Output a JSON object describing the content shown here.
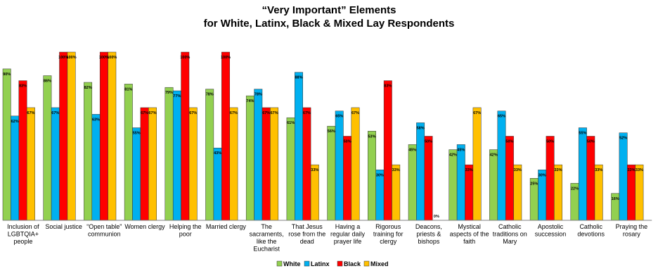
{
  "chart_data": {
    "type": "bar",
    "title": "“Very Important” Elements",
    "subtitle": "for White, Latinx, Black & Mixed Lay Respondents",
    "ylim": [
      0,
      100
    ],
    "categories": [
      [
        "Inclusion of",
        "LGBTQIA+",
        "people"
      ],
      [
        "Social justice"
      ],
      [
        "“Open table”",
        "communion"
      ],
      [
        "Women clergy"
      ],
      [
        "Helping the",
        "poor"
      ],
      [
        "Married clergy"
      ],
      [
        "The",
        "sacraments,",
        "like the",
        "Eucharist"
      ],
      [
        "That Jesus",
        "rose from the",
        "dead"
      ],
      [
        "Having a",
        "regular daily",
        "prayer life"
      ],
      [
        "Rigorous",
        "training for",
        "clergy"
      ],
      [
        "Deacons,",
        "priests &",
        "bishops"
      ],
      [
        "Mystical",
        "aspects of the",
        "faith"
      ],
      [
        "Catholic",
        "traditions on",
        "Mary"
      ],
      [
        "Apostolic",
        "succession"
      ],
      [
        "Catholic",
        "devotions"
      ],
      [
        "Praying the",
        "rosary"
      ]
    ],
    "series": [
      {
        "name": "White",
        "color": "#92d050",
        "values": [
          90,
          86,
          82,
          81,
          79,
          78,
          74,
          61,
          56,
          53,
          45,
          42,
          42,
          25,
          22,
          16
        ]
      },
      {
        "name": "Latinx",
        "color": "#00b0f0",
        "values": [
          62,
          67,
          63,
          55,
          77,
          43,
          78,
          88,
          65,
          30,
          58,
          45,
          65,
          30,
          55,
          52
        ]
      },
      {
        "name": "Black",
        "color": "#ff0000",
        "values": [
          83,
          100,
          100,
          67,
          100,
          100,
          67,
          67,
          50,
          83,
          50,
          33,
          50,
          50,
          50,
          33
        ]
      },
      {
        "name": "Mixed",
        "color": "#ffc000",
        "values": [
          67,
          100,
          100,
          67,
          67,
          67,
          67,
          33,
          67,
          33,
          0,
          67,
          33,
          33,
          33,
          33
        ]
      }
    ],
    "value_suffix": "%",
    "legend_position": "bottom",
    "grid": false
  }
}
